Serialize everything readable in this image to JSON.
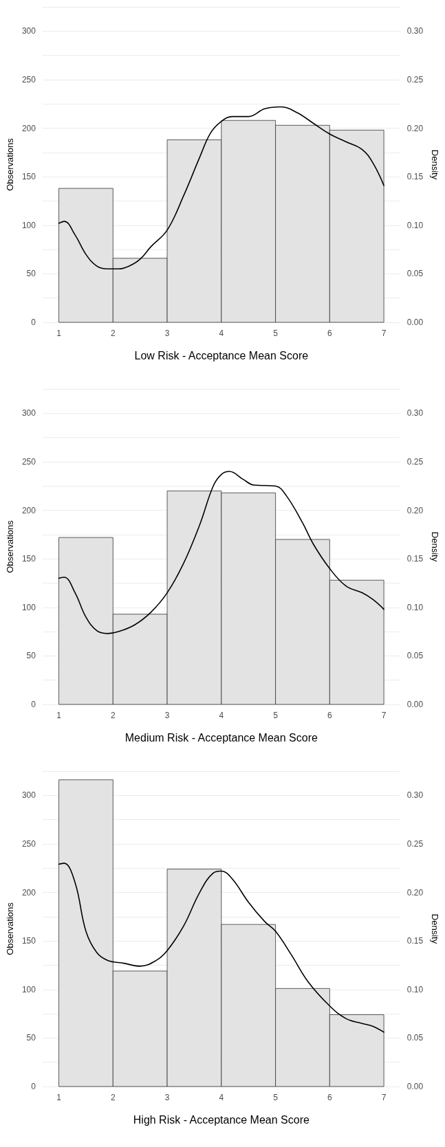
{
  "chart_data": [
    {
      "type": "histogram",
      "xlabel": "Low Risk - Acceptance Mean Score",
      "ylabel": "Observations",
      "y2label": "Density",
      "bins": [
        1,
        2,
        3,
        4,
        5,
        6,
        7
      ],
      "values": [
        138,
        66,
        188,
        208,
        203,
        198
      ],
      "color": "#e3e3e3",
      "series": [
        {
          "type": "line",
          "axis": "y2",
          "color": "#000000",
          "x": [
            1,
            1.1,
            1.3,
            1.5,
            1.7,
            1.9,
            2.1,
            2.3,
            2.5,
            2.7,
            3,
            3.3,
            3.6,
            3.8,
            4,
            4.2,
            4.5,
            4.8,
            5.1,
            5.4,
            5.7,
            6,
            6.3,
            6.6,
            6.8,
            7
          ],
          "values": [
            0.102,
            0.104,
            0.09,
            0.07,
            0.058,
            0.055,
            0.055,
            0.058,
            0.065,
            0.078,
            0.095,
            0.13,
            0.17,
            0.195,
            0.207,
            0.212,
            0.212,
            0.22,
            0.222,
            0.216,
            0.205,
            0.194,
            0.186,
            0.178,
            0.164,
            0.141
          ]
        }
      ],
      "xlim": [
        0.7,
        7.3
      ],
      "xticks": [
        1,
        2,
        3,
        4,
        5,
        6,
        7
      ],
      "ylim": [
        0,
        325
      ],
      "yticks": [
        0,
        {
          "value": 25,
          "label": null
        },
        50,
        {
          "value": 75,
          "label": null
        },
        100,
        {
          "value": 125,
          "label": null
        },
        150,
        {
          "value": 175,
          "label": null
        },
        200,
        {
          "value": 225,
          "label": null
        },
        250,
        {
          "value": 275,
          "label": null
        },
        300,
        {
          "value": 325,
          "label": null
        }
      ],
      "y2lim": [
        0,
        0.325
      ],
      "y2ticks": [
        {
          "value": 0,
          "label": "0.00"
        },
        {
          "value": 0.05,
          "label": "0.05"
        },
        {
          "value": 0.1,
          "label": "0.10"
        },
        {
          "value": 0.15,
          "label": "0.15"
        },
        {
          "value": 0.2,
          "label": "0.20"
        },
        {
          "value": 0.25,
          "label": "0.25"
        },
        {
          "value": 0.3,
          "label": "0.30"
        }
      ],
      "grid": "y",
      "marker": "none",
      "line_style": "solid"
    },
    {
      "type": "histogram",
      "xlabel": "Medium Risk - Acceptance Mean Score",
      "ylabel": "Observations",
      "y2label": "Density",
      "bins": [
        1,
        2,
        3,
        4,
        5,
        6,
        7
      ],
      "values": [
        172,
        93,
        220,
        218,
        170,
        128
      ],
      "color": "#e3e3e3",
      "series": [
        {
          "type": "line",
          "axis": "y2",
          "color": "#000000",
          "x": [
            1,
            1.1,
            1.3,
            1.5,
            1.7,
            1.9,
            2.1,
            2.4,
            2.7,
            3,
            3.3,
            3.6,
            3.85,
            4,
            4.15,
            4.4,
            4.6,
            5,
            5.2,
            5.5,
            5.7,
            6,
            6.3,
            6.6,
            6.8,
            7
          ],
          "values": [
            0.13,
            0.131,
            0.115,
            0.09,
            0.076,
            0.073,
            0.075,
            0.082,
            0.095,
            0.115,
            0.145,
            0.185,
            0.225,
            0.237,
            0.24,
            0.232,
            0.226,
            0.225,
            0.215,
            0.187,
            0.165,
            0.14,
            0.122,
            0.115,
            0.108,
            0.098
          ]
        }
      ],
      "xlim": [
        0.7,
        7.3
      ],
      "xticks": [
        1,
        2,
        3,
        4,
        5,
        6,
        7
      ],
      "ylim": [
        0,
        325
      ],
      "yticks": [
        0,
        {
          "value": 25,
          "label": null
        },
        50,
        {
          "value": 75,
          "label": null
        },
        100,
        {
          "value": 125,
          "label": null
        },
        150,
        {
          "value": 175,
          "label": null
        },
        200,
        {
          "value": 225,
          "label": null
        },
        250,
        {
          "value": 275,
          "label": null
        },
        300,
        {
          "value": 325,
          "label": null
        }
      ],
      "y2lim": [
        0,
        0.325
      ],
      "y2ticks": [
        {
          "value": 0,
          "label": "0.00"
        },
        {
          "value": 0.05,
          "label": "0.05"
        },
        {
          "value": 0.1,
          "label": "0.10"
        },
        {
          "value": 0.15,
          "label": "0.15"
        },
        {
          "value": 0.2,
          "label": "0.20"
        },
        {
          "value": 0.25,
          "label": "0.25"
        },
        {
          "value": 0.3,
          "label": "0.30"
        }
      ],
      "grid": "y",
      "marker": "none",
      "line_style": "solid"
    },
    {
      "type": "histogram",
      "xlabel": "High Risk - Acceptance Mean Score",
      "ylabel": "Observations",
      "y2label": "Density",
      "bins": [
        1,
        2,
        3,
        4,
        5,
        6,
        7
      ],
      "values": [
        316,
        119,
        224,
        167,
        101,
        74
      ],
      "color": "#e3e3e3",
      "series": [
        {
          "type": "line",
          "axis": "y2",
          "color": "#000000",
          "x": [
            1,
            1.1,
            1.3,
            1.5,
            1.7,
            1.9,
            2.2,
            2.5,
            2.8,
            3,
            3.3,
            3.6,
            3.85,
            4,
            4.2,
            4.5,
            4.8,
            5,
            5.3,
            5.6,
            6,
            6.3,
            6.6,
            6.8,
            7
          ],
          "values": [
            0.229,
            0.23,
            0.21,
            0.16,
            0.138,
            0.13,
            0.127,
            0.124,
            0.13,
            0.14,
            0.165,
            0.2,
            0.22,
            0.222,
            0.214,
            0.19,
            0.17,
            0.16,
            0.135,
            0.108,
            0.083,
            0.07,
            0.065,
            0.062,
            0.056
          ]
        }
      ],
      "xlim": [
        0.7,
        7.3
      ],
      "xticks": [
        1,
        2,
        3,
        4,
        5,
        6,
        7
      ],
      "ylim": [
        0,
        325
      ],
      "yticks": [
        0,
        {
          "value": 25,
          "label": null
        },
        50,
        {
          "value": 75,
          "label": null
        },
        100,
        {
          "value": 125,
          "label": null
        },
        150,
        {
          "value": 175,
          "label": null
        },
        200,
        {
          "value": 225,
          "label": null
        },
        250,
        {
          "value": 275,
          "label": null
        },
        300,
        {
          "value": 325,
          "label": null
        }
      ],
      "y2lim": [
        0,
        0.325
      ],
      "y2ticks": [
        {
          "value": 0,
          "label": "0.00"
        },
        {
          "value": 0.05,
          "label": "0.05"
        },
        {
          "value": 0.1,
          "label": "0.10"
        },
        {
          "value": 0.15,
          "label": "0.15"
        },
        {
          "value": 0.2,
          "label": "0.20"
        },
        {
          "value": 0.25,
          "label": "0.25"
        },
        {
          "value": 0.3,
          "label": "0.30"
        }
      ],
      "grid": "y",
      "marker": "none",
      "line_style": "solid"
    }
  ]
}
